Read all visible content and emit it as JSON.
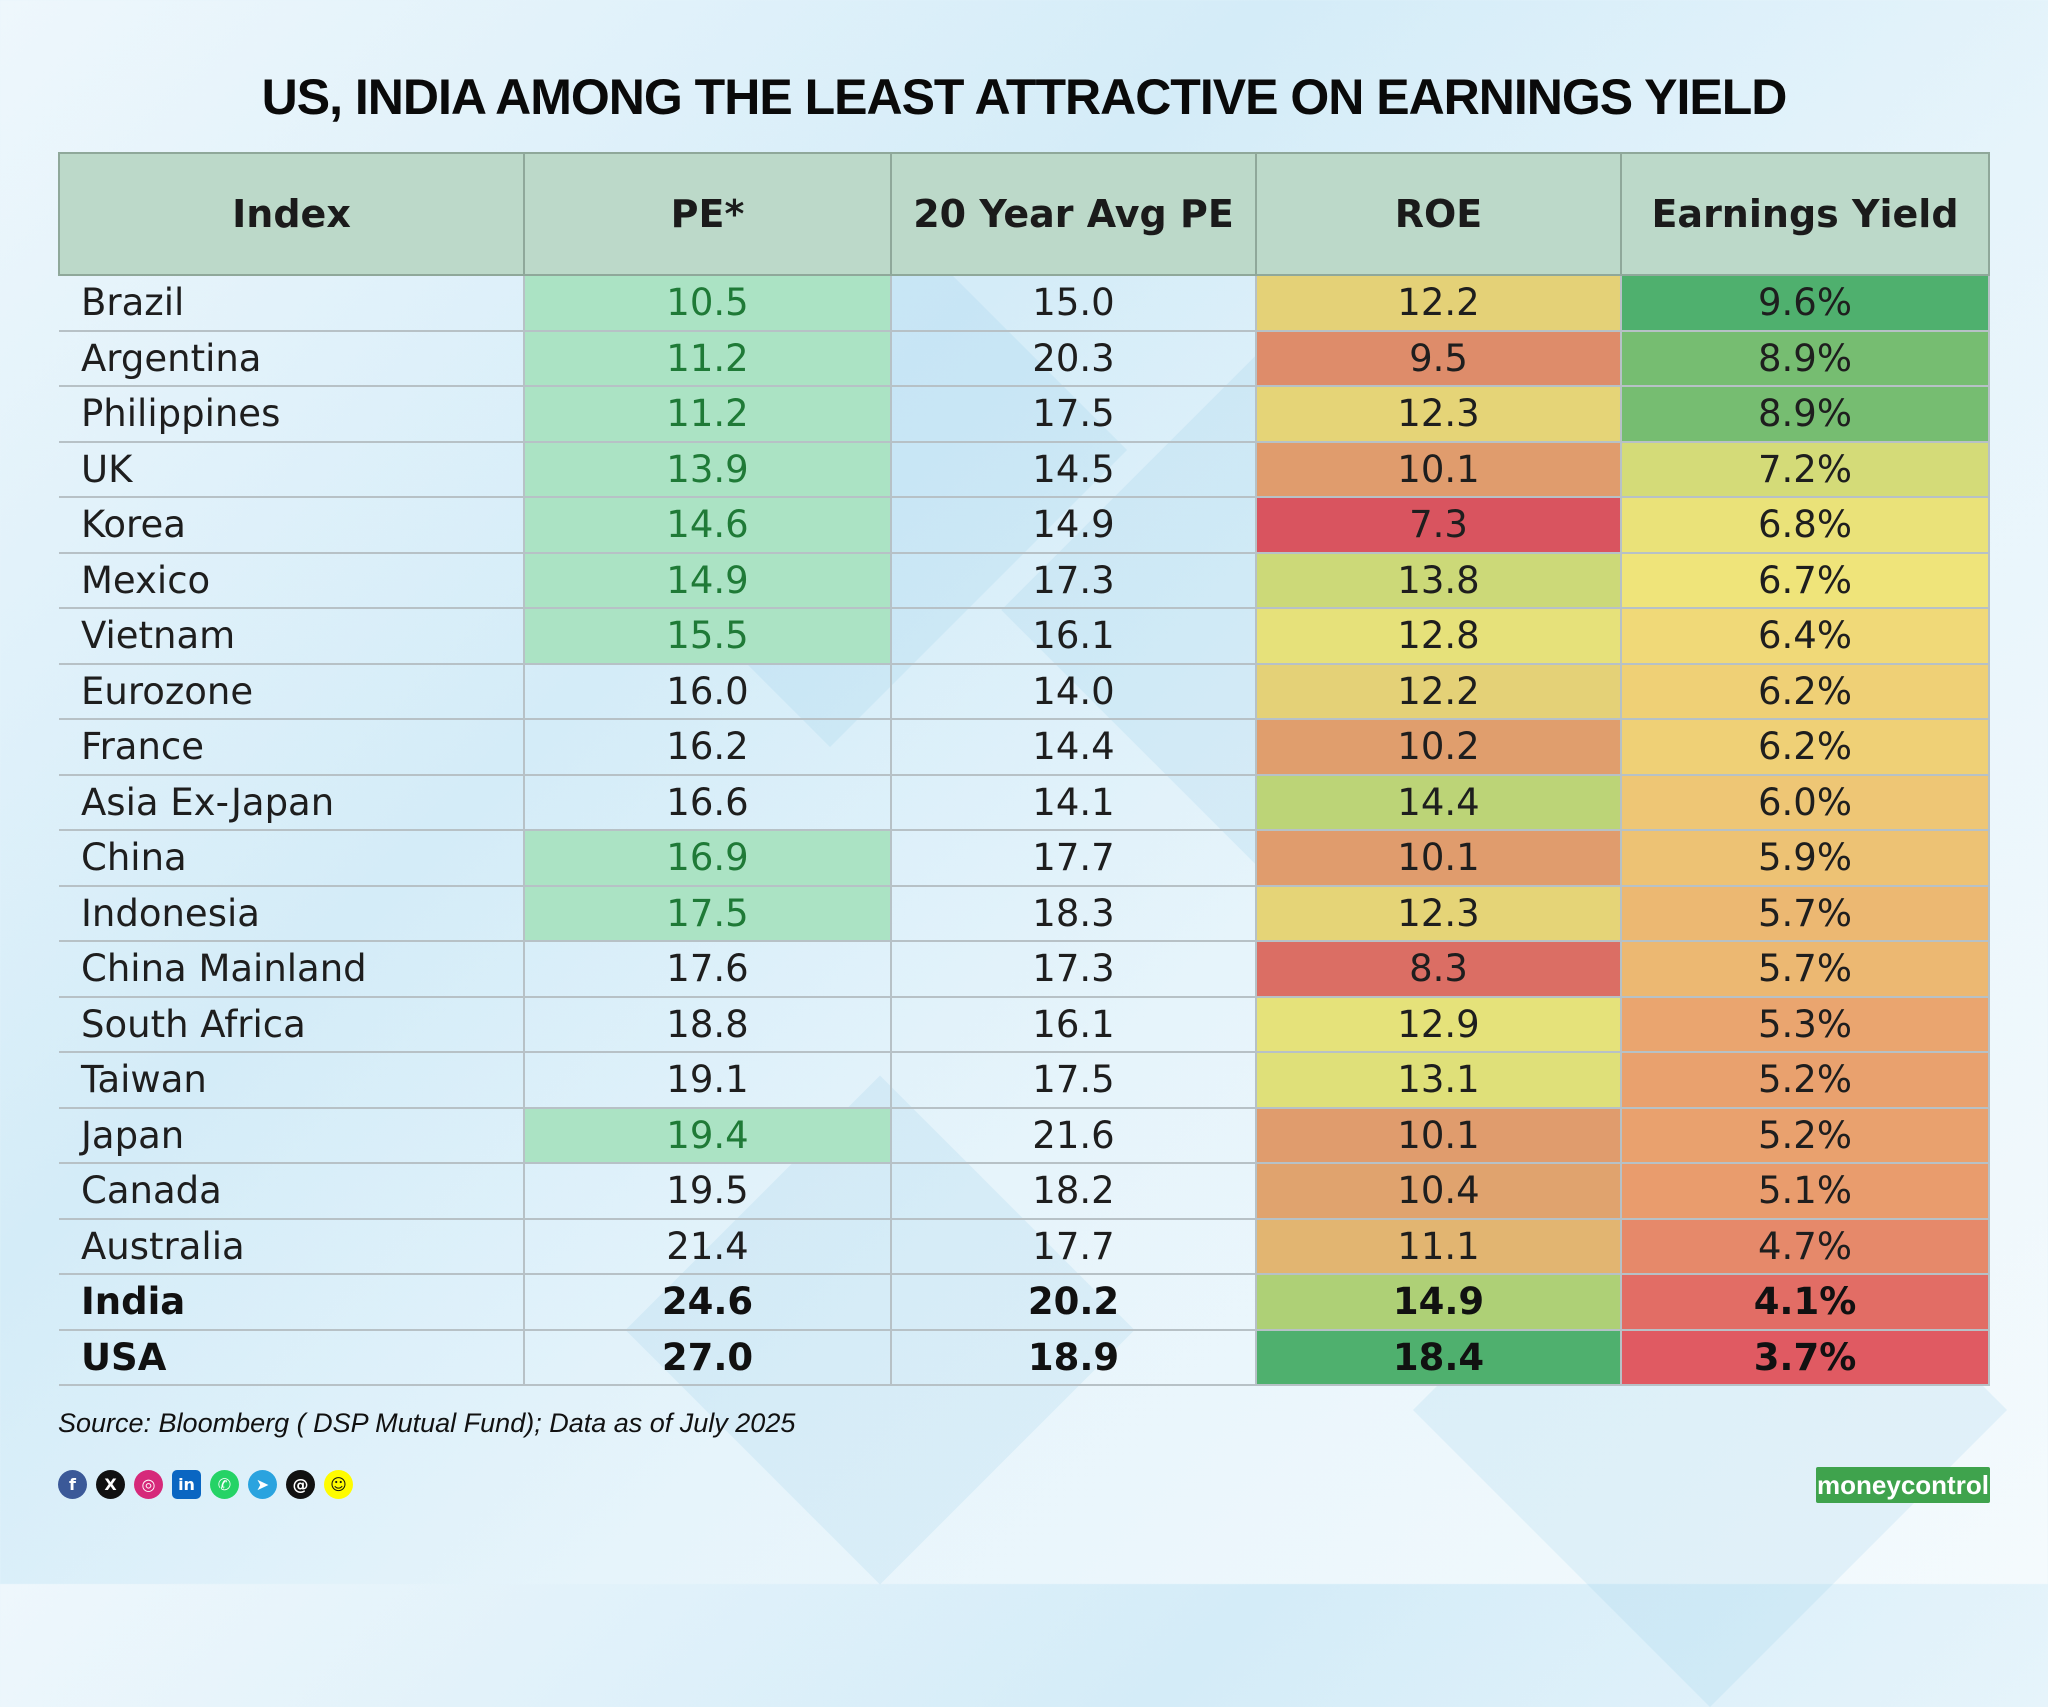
{
  "chart_data": {
    "type": "table",
    "title": "US, INDIA AMONG THE LEAST ATTRACTIVE ON EARNINGS YIELD",
    "columns": [
      "Index",
      "PE*",
      "20 Year Avg PE",
      "ROE",
      "Earnings Yield"
    ],
    "rows": [
      {
        "index": "Brazil",
        "pe": 10.5,
        "avg_pe": 15.0,
        "roe": 12.2,
        "ey": 9.6,
        "pe_below_avg": true,
        "bold": false
      },
      {
        "index": "Argentina",
        "pe": 11.2,
        "avg_pe": 20.3,
        "roe": 9.5,
        "ey": 8.9,
        "pe_below_avg": true,
        "bold": false
      },
      {
        "index": "Philippines",
        "pe": 11.2,
        "avg_pe": 17.5,
        "roe": 12.3,
        "ey": 8.9,
        "pe_below_avg": true,
        "bold": false
      },
      {
        "index": "UK",
        "pe": 13.9,
        "avg_pe": 14.5,
        "roe": 10.1,
        "ey": 7.2,
        "pe_below_avg": true,
        "bold": false
      },
      {
        "index": "Korea",
        "pe": 14.6,
        "avg_pe": 14.9,
        "roe": 7.3,
        "ey": 6.8,
        "pe_below_avg": true,
        "bold": false
      },
      {
        "index": "Mexico",
        "pe": 14.9,
        "avg_pe": 17.3,
        "roe": 13.8,
        "ey": 6.7,
        "pe_below_avg": true,
        "bold": false
      },
      {
        "index": "Vietnam",
        "pe": 15.5,
        "avg_pe": 16.1,
        "roe": 12.8,
        "ey": 6.4,
        "pe_below_avg": true,
        "bold": false
      },
      {
        "index": "Eurozone",
        "pe": 16.0,
        "avg_pe": 14.0,
        "roe": 12.2,
        "ey": 6.2,
        "pe_below_avg": false,
        "bold": false
      },
      {
        "index": "France",
        "pe": 16.2,
        "avg_pe": 14.4,
        "roe": 10.2,
        "ey": 6.2,
        "pe_below_avg": false,
        "bold": false
      },
      {
        "index": "Asia Ex-Japan",
        "pe": 16.6,
        "avg_pe": 14.1,
        "roe": 14.4,
        "ey": 6.0,
        "pe_below_avg": false,
        "bold": false
      },
      {
        "index": "China",
        "pe": 16.9,
        "avg_pe": 17.7,
        "roe": 10.1,
        "ey": 5.9,
        "pe_below_avg": true,
        "bold": false
      },
      {
        "index": "Indonesia",
        "pe": 17.5,
        "avg_pe": 18.3,
        "roe": 12.3,
        "ey": 5.7,
        "pe_below_avg": true,
        "bold": false
      },
      {
        "index": "China Mainland",
        "pe": 17.6,
        "avg_pe": 17.3,
        "roe": 8.3,
        "ey": 5.7,
        "pe_below_avg": false,
        "bold": false
      },
      {
        "index": "South Africa",
        "pe": 18.8,
        "avg_pe": 16.1,
        "roe": 12.9,
        "ey": 5.3,
        "pe_below_avg": false,
        "bold": false
      },
      {
        "index": "Taiwan",
        "pe": 19.1,
        "avg_pe": 17.5,
        "roe": 13.1,
        "ey": 5.2,
        "pe_below_avg": false,
        "bold": false
      },
      {
        "index": "Japan",
        "pe": 19.4,
        "avg_pe": 21.6,
        "roe": 10.1,
        "ey": 5.2,
        "pe_below_avg": true,
        "bold": false
      },
      {
        "index": "Canada",
        "pe": 19.5,
        "avg_pe": 18.2,
        "roe": 10.4,
        "ey": 5.1,
        "pe_below_avg": false,
        "bold": false
      },
      {
        "index": "Australia",
        "pe": 21.4,
        "avg_pe": 17.7,
        "roe": 11.1,
        "ey": 4.7,
        "pe_below_avg": false,
        "bold": false
      },
      {
        "index": "India",
        "pe": 24.6,
        "avg_pe": 20.2,
        "roe": 14.9,
        "ey": 4.1,
        "pe_below_avg": false,
        "bold": true
      },
      {
        "index": "USA",
        "pe": 27.0,
        "avg_pe": 18.9,
        "roe": 18.4,
        "ey": 3.7,
        "pe_below_avg": false,
        "bold": true
      }
    ],
    "heatmap": {
      "roe_colors": {
        "low": "#d9545f",
        "mid": "#e6e27a",
        "high": "#4fb06e"
      },
      "ey_colors": {
        "low": "#e05a62",
        "mid": "#f2e57a",
        "high": "#4fb06e"
      }
    },
    "pe_highlight_color": "#abe3c4"
  },
  "footer": {
    "source": "Source: Bloomberg ( DSP Mutual Fund); Data as of July 2025",
    "social_icons": [
      "facebook-icon",
      "x-icon",
      "instagram-icon",
      "linkedin-icon",
      "whatsapp-icon",
      "telegram-icon",
      "threads-icon",
      "snapchat-icon"
    ],
    "logo": "moneycontrol"
  }
}
